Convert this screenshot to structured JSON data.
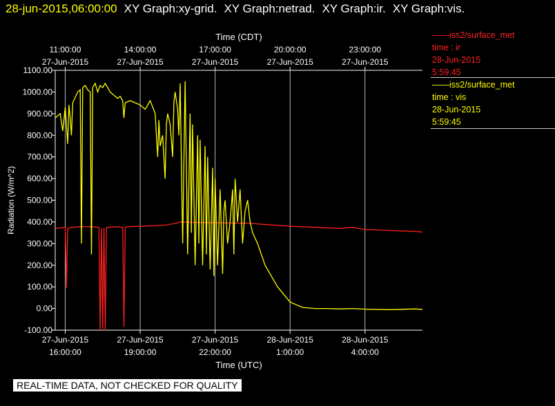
{
  "header": {
    "timestamp": "28-jun-2015,06:00:00",
    "graphs": [
      "XY Graph:xy-grid.",
      "XY Graph:netrad.",
      "XY Graph:ir.",
      "XY Graph:vis."
    ]
  },
  "legend": [
    {
      "line1": "——iss2/surface_met",
      "line2": "time : ir",
      "line3": "28-Jun-2015",
      "line4": "5:59:45",
      "color": "#ff2020"
    },
    {
      "line1": "——iss2/surface_met",
      "line2": "time : vis",
      "line3": "28-Jun-2015",
      "line4": "5:59:45",
      "color": "#ffff00"
    }
  ],
  "notice": "REAL-TIME DATA, NOT CHECKED FOR QUALITY",
  "chart_data": {
    "type": "line",
    "top_axis_title": "Time (CDT)",
    "xlabel": "Time (UTC)",
    "ylabel": "Radiation (W/m^2)",
    "ylim": [
      -100,
      1100
    ],
    "yticks": [
      "1100.00",
      "1000.00",
      "900.00",
      "800.00",
      "700.00",
      "600.00",
      "500.00",
      "400.00",
      "300.00",
      "200.00",
      "100.00",
      "0.00",
      "-100.00"
    ],
    "x_range_hours_utc": [
      15.6,
      30.3
    ],
    "bottom_ticks": [
      {
        "h": 16,
        "date": "27-Jun-2015",
        "time": "16:00:00"
      },
      {
        "h": 19,
        "date": "27-Jun-2015",
        "time": "19:00:00"
      },
      {
        "h": 22,
        "date": "27-Jun-2015",
        "time": "22:00:00"
      },
      {
        "h": 25,
        "date": "28-Jun-2015",
        "time": "1:00:00"
      },
      {
        "h": 28,
        "date": "28-Jun-2015",
        "time": "4:00:00"
      }
    ],
    "top_ticks": [
      {
        "h": 16,
        "time": "11:00:00",
        "date": "27-Jun-2015"
      },
      {
        "h": 19,
        "time": "14:00:00",
        "date": "27-Jun-2015"
      },
      {
        "h": 22,
        "time": "17:00:00",
        "date": "27-Jun-2015"
      },
      {
        "h": 25,
        "time": "20:00:00",
        "date": "27-Jun-2015"
      },
      {
        "h": 28,
        "time": "23:00:00",
        "date": "27-Jun-2015"
      }
    ],
    "grid": true,
    "series": [
      {
        "name": "ir",
        "color": "#ff2020",
        "x": [
          15.6,
          16.0,
          16.05,
          16.1,
          16.15,
          16.3,
          16.6,
          17.0,
          17.35,
          17.4,
          17.45,
          17.5,
          17.55,
          17.6,
          17.65,
          17.7,
          17.75,
          17.8,
          17.85,
          18.0,
          18.3,
          18.35,
          18.4,
          18.5,
          19.0,
          20.0,
          20.5,
          20.6,
          21.0,
          21.5,
          22.0,
          22.5,
          23.0,
          23.5,
          24.0,
          25.0,
          26.0,
          27.0,
          27.5,
          28.0,
          29.0,
          30.0,
          30.3
        ],
        "y": [
          370,
          375,
          95,
          370,
          372,
          375,
          378,
          378,
          375,
          -100,
          372,
          -95,
          372,
          -100,
          373,
          375,
          375,
          376,
          376,
          378,
          375,
          -85,
          375,
          378,
          380,
          385,
          395,
          400,
          398,
          397,
          396,
          395,
          394,
          393,
          388,
          380,
          375,
          370,
          375,
          365,
          360,
          356,
          353
        ]
      },
      {
        "name": "vis",
        "color": "#ffff00",
        "x": [
          15.6,
          15.8,
          15.9,
          16.0,
          16.1,
          16.15,
          16.2,
          16.25,
          16.3,
          16.5,
          16.6,
          16.65,
          16.7,
          16.8,
          16.9,
          17.0,
          17.05,
          17.1,
          17.2,
          17.3,
          17.4,
          17.5,
          17.6,
          17.65,
          17.7,
          17.8,
          17.9,
          18.0,
          18.1,
          18.2,
          18.3,
          18.35,
          18.4,
          18.6,
          18.8,
          19.0,
          19.2,
          19.4,
          19.6,
          19.7,
          19.75,
          19.8,
          19.9,
          20.0,
          20.05,
          20.1,
          20.2,
          20.3,
          20.35,
          20.4,
          20.5,
          20.55,
          20.6,
          20.7,
          20.8,
          20.9,
          21.0,
          21.05,
          21.1,
          21.2,
          21.3,
          21.35,
          21.4,
          21.5,
          21.6,
          21.65,
          21.7,
          21.8,
          21.9,
          21.95,
          22.0,
          22.1,
          22.2,
          22.3,
          22.35,
          22.4,
          22.5,
          22.6,
          22.7,
          22.75,
          22.8,
          22.9,
          23.0,
          23.1,
          23.2,
          23.3,
          23.4,
          23.5,
          23.7,
          24.0,
          24.5,
          25.0,
          25.5,
          26.0,
          26.5,
          27.0,
          27.5,
          28.0,
          29.0,
          30.0,
          30.3
        ],
        "y": [
          880,
          900,
          820,
          930,
          760,
          940,
          880,
          800,
          950,
          1000,
          1010,
          300,
          1020,
          1030,
          1010,
          1000,
          250,
          1020,
          1040,
          1000,
          1030,
          1020,
          1040,
          1030,
          1020,
          1000,
          990,
          980,
          970,
          980,
          960,
          880,
          950,
          960,
          950,
          940,
          920,
          960,
          900,
          700,
          870,
          750,
          800,
          600,
          850,
          900,
          850,
          700,
          950,
          1000,
          920,
          800,
          1040,
          300,
          1050,
          250,
          900,
          350,
          850,
          200,
          800,
          300,
          780,
          200,
          750,
          250,
          700,
          180,
          650,
          150,
          600,
          200,
          550,
          160,
          450,
          500,
          300,
          400,
          550,
          250,
          600,
          400,
          550,
          300,
          450,
          500,
          400,
          350,
          300,
          200,
          100,
          30,
          5,
          0,
          0,
          -2,
          0,
          -3,
          -5,
          -2,
          -4
        ]
      }
    ]
  }
}
